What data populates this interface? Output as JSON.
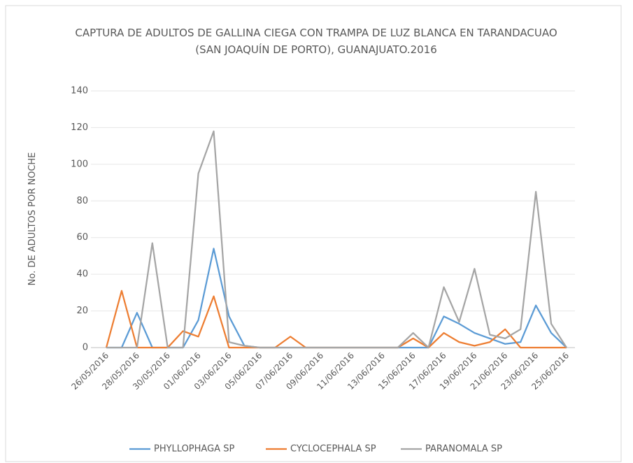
{
  "chart_data": {
    "type": "line",
    "title": "CAPTURA DE ADULTOS DE GALLINA CIEGA  CON TRAMPA DE LUZ BLANCA EN TARANDACUAO",
    "subtitle": "(SAN  JOAQUÍN DE PORTO), GUANAJUATO.2016",
    "y_label": "No. DE ADULTOS POR NOCHE",
    "categories": [
      "26/05/2016",
      null,
      "28/05/2016",
      null,
      "30/05/2016",
      null,
      "01/06/2016",
      null,
      "03/06/2016",
      null,
      "05/06/2016",
      null,
      "07/06/2016",
      null,
      "09/06/2016",
      null,
      "11/06/2016",
      null,
      "13/06/2016",
      null,
      "15/06/2016",
      null,
      "17/06/2016",
      null,
      "19/06/2016",
      null,
      "21/06/2016",
      null,
      "23/06/2016",
      null,
      "25/06/2016"
    ],
    "series": [
      {
        "name": "PHYLLOPHAGA SP",
        "color": "#5b9bd5",
        "values": [
          0,
          0,
          19,
          0,
          0,
          0,
          15,
          54,
          17,
          1,
          0,
          0,
          0,
          0,
          0,
          0,
          0,
          0,
          0,
          0,
          0,
          0,
          17,
          13,
          8,
          5,
          2,
          3,
          23,
          8,
          0
        ]
      },
      {
        "name": "CYCLOCEPHALA SP",
        "color": "#ed7d31",
        "values": [
          0,
          31,
          0,
          0,
          0,
          9,
          6,
          28,
          0,
          0,
          0,
          0,
          6,
          0,
          0,
          0,
          0,
          0,
          0,
          0,
          5,
          0,
          8,
          3,
          1,
          3,
          10,
          0,
          0,
          0,
          0
        ]
      },
      {
        "name": "PARANOMALA SP",
        "color": "#a5a5a5",
        "values": [
          0,
          0,
          0,
          57,
          0,
          0,
          95,
          118,
          3,
          1,
          0,
          0,
          0,
          0,
          0,
          0,
          0,
          0,
          0,
          0,
          8,
          0,
          33,
          14,
          43,
          7,
          5,
          10,
          85,
          13,
          0
        ]
      }
    ],
    "ylim": [
      0,
      140
    ],
    "yticks": [
      0,
      20,
      40,
      60,
      80,
      100,
      120,
      140
    ],
    "grid": true,
    "legend": "bottom"
  }
}
